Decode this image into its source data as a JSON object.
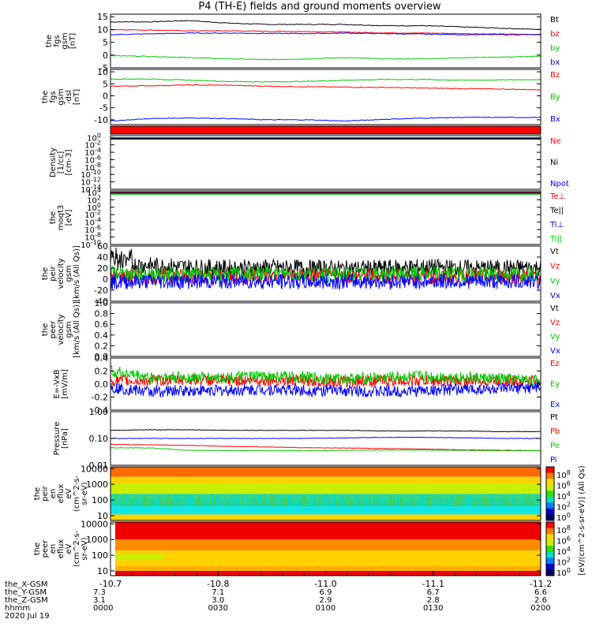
{
  "title": "P4 (TH-E) fields and ground moments overview",
  "colors": {
    "black": "#000000",
    "red": "#ff0000",
    "green": "#00c800",
    "blue": "#0000ff"
  },
  "chart_data": [
    {
      "type": "line",
      "panel": "fgs-gsm",
      "ylabel": [
        "the",
        "fgs",
        "gsm",
        "[nT]"
      ],
      "ylim": [
        -5,
        16
      ],
      "yticks": [
        15,
        10,
        5,
        0,
        -5
      ],
      "legend": [
        "Bt",
        "bz",
        "by",
        "bx"
      ],
      "series": [
        {
          "name": "Bt",
          "color": "black",
          "values": [
            13,
            13,
            13.5,
            12.5,
            12,
            12,
            12,
            11.5,
            11.5,
            11,
            10.5,
            10
          ]
        },
        {
          "name": "bz",
          "color": "red",
          "values": [
            10,
            9.8,
            9.5,
            9.5,
            9.3,
            9.2,
            9,
            8.7,
            8.6,
            8.4,
            8.2,
            8
          ]
        },
        {
          "name": "by",
          "color": "green",
          "values": [
            -0.2,
            -0.5,
            -1,
            -1.5,
            -1.8,
            -1.5,
            -1,
            -1.5,
            -1.5,
            -1,
            -0.8,
            -0.5
          ]
        },
        {
          "name": "bx",
          "color": "blue",
          "values": [
            8,
            8.3,
            8.6,
            8.6,
            8.5,
            8.4,
            8.6,
            8.4,
            8.2,
            8,
            8,
            8
          ]
        }
      ]
    },
    {
      "type": "line",
      "panel": "fgs-gsm-dsl",
      "ylabel": [
        "the",
        "fgs",
        "gsm",
        "-dsl",
        "[nT]"
      ],
      "ylim": [
        -12,
        11
      ],
      "yticks": [
        10,
        5,
        0,
        -5,
        -10
      ],
      "legend": [
        "Bz",
        "By",
        "Bx"
      ],
      "series": [
        {
          "name": "Bz",
          "color": "red",
          "values": [
            4,
            4.2,
            4.5,
            4.4,
            4,
            3.8,
            3.6,
            3.5,
            3.2,
            3,
            2.8,
            2.5
          ]
        },
        {
          "name": "By",
          "color": "green",
          "values": [
            7,
            7,
            6.5,
            6,
            5.8,
            6,
            6.5,
            6.8,
            6.8,
            6.5,
            6.6,
            6.8
          ]
        },
        {
          "name": "Bx",
          "color": "blue",
          "values": [
            -10.5,
            -9.5,
            -9.2,
            -9.5,
            -10,
            -10,
            -10.5,
            -9.8,
            -9.3,
            -9,
            -9,
            -9
          ]
        }
      ]
    },
    {
      "type": "line",
      "panel": "density",
      "ylabel": [
        "Density",
        "[1/cc]",
        "[cm-3]"
      ],
      "yscale": "log",
      "ylim_exp": [
        -14,
        0.5
      ],
      "ytick_exps": [
        0,
        -2,
        -4,
        -6,
        -8,
        -10,
        -12,
        -14
      ],
      "legend": [
        "Ne",
        "Ni",
        "Npot"
      ],
      "series": [
        {
          "name": "Ne",
          "color": "red",
          "values": []
        },
        {
          "name": "Ni",
          "color": "black",
          "values": []
        },
        {
          "name": "Npot",
          "color": "blue",
          "values": []
        }
      ]
    },
    {
      "type": "line",
      "panel": "temperature",
      "ylabel": [
        "the",
        "moqt3",
        "[eV]"
      ],
      "yscale": "log",
      "ylim_exp": [
        -10,
        4.4
      ],
      "ytick_exps": [
        4,
        2,
        0,
        -2,
        -4,
        -6,
        -8,
        -10
      ],
      "legend": [
        "Te⊥",
        "Te||",
        "Ti⊥",
        "Ti||"
      ],
      "series": [
        {
          "name": "Te⊥",
          "color": "red",
          "values": []
        },
        {
          "name": "Te||",
          "color": "black",
          "values": []
        },
        {
          "name": "Ti⊥",
          "color": "blue",
          "values": []
        },
        {
          "name": "Ti||",
          "color": "green",
          "values": []
        }
      ]
    },
    {
      "type": "line",
      "panel": "peir-velocity",
      "ylabel": [
        "the",
        "peir",
        "velocity",
        "gsm",
        "[km/s (All Qs)]"
      ],
      "ylim": [
        -40,
        60
      ],
      "yticks": [
        60,
        40,
        20,
        0,
        -20,
        -40
      ],
      "legend": [
        "Vt",
        "Vz",
        "Vy",
        "Vx"
      ],
      "series": [
        {
          "name": "Vt",
          "color": "black",
          "values": [
            30,
            25,
            22,
            20,
            21,
            20,
            19,
            20,
            22,
            20,
            20,
            21
          ]
        },
        {
          "name": "Vz",
          "color": "red",
          "values": [
            5,
            5,
            5,
            4,
            5,
            5,
            5,
            5,
            4,
            5,
            5,
            5
          ]
        },
        {
          "name": "Vy",
          "color": "green",
          "values": [
            10,
            10,
            8,
            8,
            10,
            9,
            8,
            9,
            10,
            9,
            9,
            10
          ]
        },
        {
          "name": "Vx",
          "color": "blue",
          "values": [
            -5,
            -4,
            -4,
            -4,
            -4,
            -5,
            -4,
            -4,
            -4,
            -4,
            -4,
            -4
          ]
        }
      ]
    },
    {
      "type": "line",
      "panel": "peer-velocity",
      "ylabel": [
        "the",
        "peer",
        "velocity",
        "gsm",
        "[km/s (All Qs)]"
      ],
      "ylim": [
        0,
        1
      ],
      "yticks": [
        1.0,
        0.8,
        0.6,
        0.4,
        0.2,
        0.0
      ],
      "legend": [
        "Vt",
        "Vz",
        "Vy",
        "Vx"
      ],
      "series": []
    },
    {
      "type": "line",
      "panel": "efield",
      "ylabel": [
        "E=-VxB",
        "[mV/m]"
      ],
      "ylim": [
        -0.4,
        0.4
      ],
      "yticks": [
        0.4,
        0.2,
        0.0,
        -0.2,
        -0.4
      ],
      "legend": [
        "Ez",
        "Ey",
        "Ex"
      ],
      "series": [
        {
          "name": "Ez",
          "color": "red",
          "values": [
            0.05,
            0.05,
            0.07,
            0.05,
            0.06,
            0.05,
            0.04,
            0.05,
            0.05,
            0.05,
            0.05,
            0.05
          ]
        },
        {
          "name": "Ey",
          "color": "green",
          "values": [
            0.2,
            0.1,
            0.1,
            0.1,
            0.12,
            0.1,
            0.08,
            0.1,
            0.12,
            0.1,
            0.08,
            0.05
          ]
        },
        {
          "name": "Ex",
          "color": "blue",
          "values": [
            -0.05,
            -0.12,
            -0.1,
            -0.1,
            -0.08,
            -0.1,
            -0.1,
            -0.12,
            -0.1,
            -0.08,
            -0.08,
            -0.05
          ]
        }
      ]
    },
    {
      "type": "line",
      "panel": "pressure",
      "ylabel": [
        "Pressure",
        "[nPa]"
      ],
      "yscale": "log",
      "ylim": [
        0.01,
        1
      ],
      "yticks": [
        1.0,
        0.1,
        0.01
      ],
      "ytick_labels": [
        "1.00",
        "0.10",
        "0.01"
      ],
      "legend": [
        "Pt",
        "Pb",
        "Pe",
        "Pi"
      ],
      "series": [
        {
          "name": "Pt",
          "color": "black",
          "values": [
            0.2,
            0.21,
            0.21,
            0.2,
            0.2,
            0.2,
            0.2,
            0.19,
            0.19,
            0.19,
            0.18,
            0.18
          ]
        },
        {
          "name": "Pb",
          "color": "red",
          "values": [
            0.06,
            0.058,
            0.055,
            0.05,
            0.048,
            0.045,
            0.044,
            0.042,
            0.04,
            0.038,
            0.036,
            0.035
          ]
        },
        {
          "name": "Pe",
          "color": "green",
          "values": [
            0.045,
            0.044,
            0.036,
            0.035,
            0.035,
            0.035,
            0.036,
            0.037,
            0.037,
            0.036,
            0.035,
            0.035
          ]
        },
        {
          "name": "Pi",
          "color": "blue",
          "values": [
            0.1,
            0.1,
            0.1,
            0.1,
            0.1,
            0.1,
            0.105,
            0.11,
            0.11,
            0.105,
            0.1,
            0.1
          ]
        }
      ]
    },
    {
      "type": "heatmap",
      "panel": "peir-en-eflux",
      "ylabel": [
        "the",
        "peir",
        "en",
        "eflux",
        "eV",
        "(cm^2-s-",
        "sr-eV)"
      ],
      "yscale": "log",
      "ylim": [
        5,
        13000
      ],
      "yticks": [
        10000,
        1000,
        100,
        10
      ],
      "bands": [
        {
          "range": [
            3000,
            13000
          ],
          "color": "#ff6a00"
        },
        {
          "range": [
            1200,
            3000
          ],
          "color": "#ffd000"
        },
        {
          "range": [
            250,
            1200
          ],
          "color": "#c8f000"
        },
        {
          "range": [
            40,
            250
          ],
          "color": "#30d890"
        },
        {
          "range": [
            12,
            40
          ],
          "color": "#10e8e8"
        },
        {
          "range": [
            5,
            12
          ],
          "color": "#ffd200"
        }
      ]
    },
    {
      "type": "heatmap",
      "panel": "peer-en-eflux",
      "ylabel": [
        "the",
        "peer",
        "en",
        "eflux",
        "eV",
        "(cm^2-s-",
        "sr-eV)"
      ],
      "yscale": "log",
      "ylim": [
        5,
        13000
      ],
      "yticks": [
        10000,
        1000,
        100,
        10
      ],
      "bands": [
        {
          "range": [
            1000,
            13000
          ],
          "color": "#ee0000"
        },
        {
          "range": [
            200,
            1000
          ],
          "color": "#ff8c00"
        },
        {
          "range": [
            20,
            200
          ],
          "color": "#ffd200"
        },
        {
          "range": [
            10,
            20
          ],
          "color": "#ffae00"
        },
        {
          "range": [
            5,
            10
          ],
          "color": "#ee0000"
        }
      ]
    }
  ],
  "colorbar": {
    "tick_labels": [
      "10^8",
      "10^6",
      "10^4",
      "10^2",
      "10^0",
      "10^8",
      "10^6",
      "10^4",
      "10^2",
      "10^0"
    ],
    "label": "[eV/(cm^2-s-sr-eV)] (All Qs)",
    "colors": [
      "#ff0000",
      "#ff7a00",
      "#ffd800",
      "#c8f000",
      "#30e000",
      "#00e0c8",
      "#0080ff",
      "#0000c8",
      "#000060"
    ]
  },
  "x_axis": {
    "tick_labels": [
      "-10.7",
      "-10.8",
      "-11.0",
      "-11.1",
      "-11.2"
    ],
    "rows": [
      {
        "label": "the_X-GSM",
        "values": [
          "-10.7",
          "-10.8",
          "-11.0",
          "-11.1",
          "-11.2"
        ]
      },
      {
        "label": "the_Y-GSM",
        "values": [
          "7.3",
          "7.1",
          "6.9",
          "6.7",
          "6.6"
        ]
      },
      {
        "label": "the_Z-GSM",
        "values": [
          "3.1",
          "3.0",
          "2.9",
          "2.8",
          "2.6"
        ]
      },
      {
        "label": "hhmm",
        "values": [
          "0000",
          "0030",
          "0100",
          "0130",
          "0200"
        ]
      }
    ],
    "date": "2020 Jul 19"
  }
}
